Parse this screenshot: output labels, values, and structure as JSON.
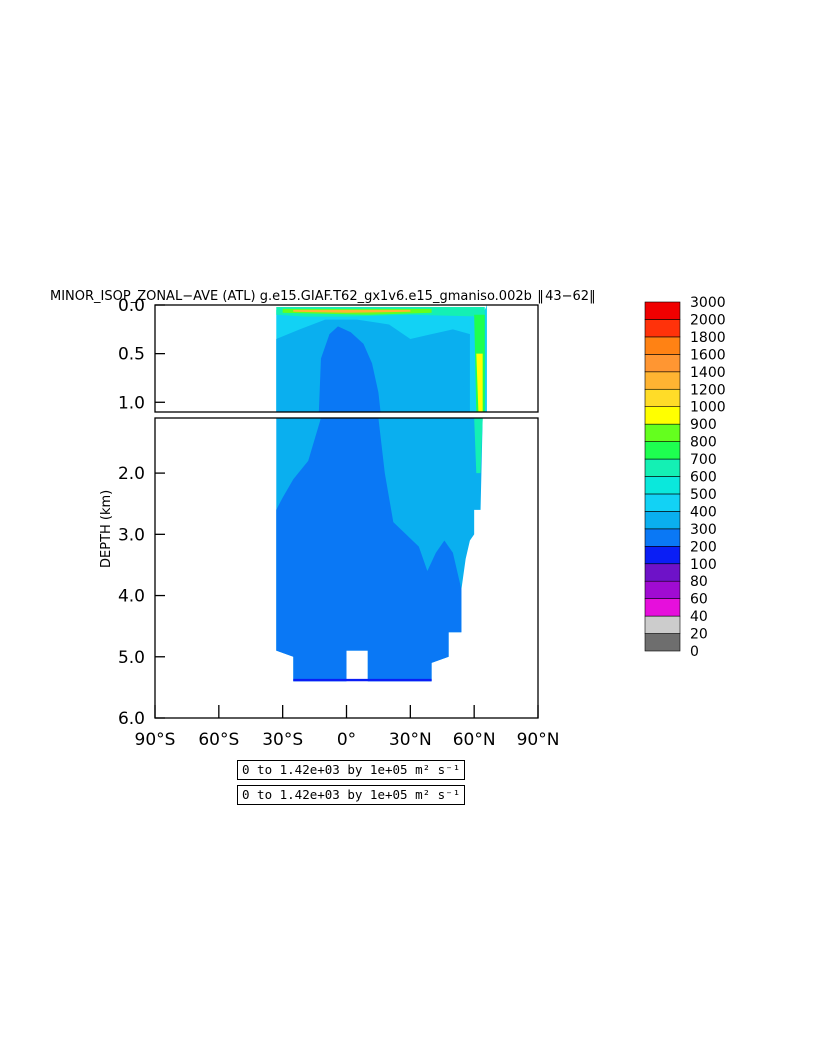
{
  "chart_data": {
    "type": "heatmap",
    "title": "MINOR_ISOP_ZONAL−AVE (ATL) g.e15.GIAF.T62_gx1v6.e15_gmaniso.002b  ‖ 43−62‖",
    "ylabel": "DEPTH (km)",
    "xlabel": "",
    "x_ticks": [
      "90°S",
      "60°S",
      "30°S",
      "0°",
      "30°N",
      "60°N",
      "90°N"
    ],
    "x_range": [
      -90,
      90
    ],
    "y_ticks_upper": [
      "0.0",
      "0.5",
      "1.0"
    ],
    "y_ticks_lower": [
      "2.0",
      "3.0",
      "4.0",
      "5.0",
      "6.0"
    ],
    "y_range_upper_km": [
      0,
      1.1
    ],
    "y_range_lower_km": [
      1.1,
      6.0
    ],
    "colorbar": {
      "levels": [
        "0",
        "20",
        "40",
        "60",
        "80",
        "100",
        "200",
        "300",
        "400",
        "500",
        "600",
        "700",
        "800",
        "900",
        "1000",
        "1200",
        "1400",
        "1600",
        "1800",
        "2000",
        "3000"
      ],
      "colors": [
        "#6e6e6e",
        "#cccccc",
        "#e60fdc",
        "#a00bd2",
        "#6e12c8",
        "#0a1ef5",
        "#0a78f5",
        "#0aafef",
        "#12d2f5",
        "#0ae8dc",
        "#14f0b4",
        "#1eff50",
        "#64ff1e",
        "#ffff00",
        "#ffdc28",
        "#ffb432",
        "#ff9632",
        "#ff8214",
        "#ff320a",
        "#f00000",
        "#b40000"
      ]
    },
    "regions": [
      {
        "level": "100-200",
        "lat_range": [
          -33,
          54
        ],
        "depth_km": [
          1.1,
          5.4
        ],
        "note": "deep body"
      },
      {
        "level": "200-300",
        "lat_range": [
          -33,
          65
        ],
        "depth_km": [
          0.05,
          3.8
        ]
      },
      {
        "level": "300-400",
        "lat_range": [
          -33,
          66
        ],
        "depth_km": [
          0.05,
          1.1
        ]
      },
      {
        "level": "500-1400",
        "lat_range": [
          -30,
          65
        ],
        "depth_km": [
          0.0,
          0.1
        ],
        "note": "surface maximum"
      },
      {
        "level": "500-1000",
        "lat_range": [
          58,
          66
        ],
        "depth_km": [
          0.1,
          2.0
        ],
        "note": "high-latitude column"
      }
    ],
    "info_lines": [
      "0 to 1.42e+03 by 1e+05 m² s⁻¹",
      "0 to 1.42e+03 by 1e+05 m² s⁻¹"
    ]
  }
}
